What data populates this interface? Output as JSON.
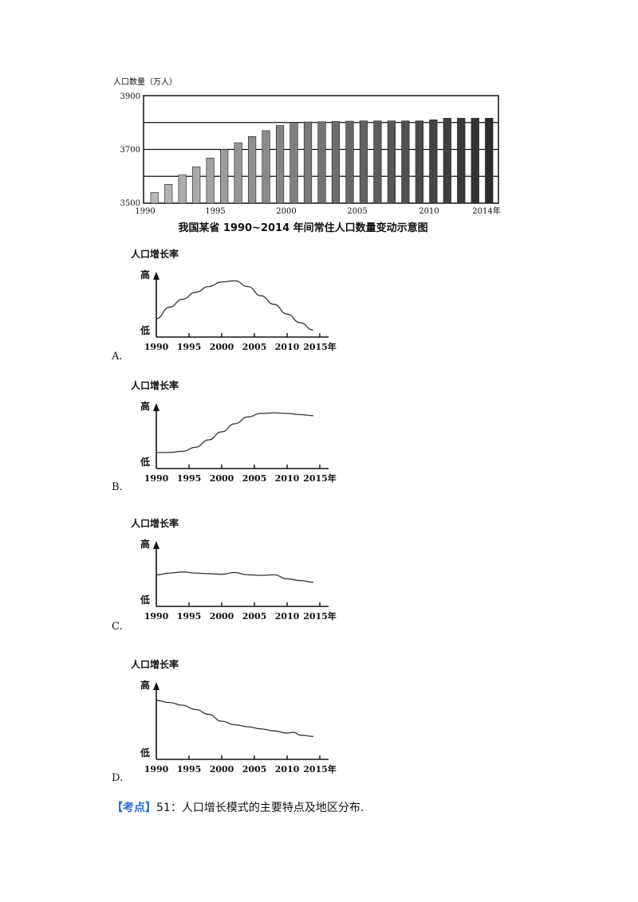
{
  "bar_chart": {
    "ylabel": "人口数量（万人）",
    "title": "我国某省 1990~2014 年间常住人口数量变动示意图",
    "y_ticks": [
      "3900",
      "3700",
      "3500"
    ],
    "x_ticks": [
      "1990",
      "1995",
      "2000",
      "2005",
      "2010",
      "2014年"
    ]
  },
  "options": [
    {
      "letter": "A.",
      "ylabel": "人口增长率",
      "high": "高",
      "low": "低",
      "x_ticks": [
        "1990",
        "1995",
        "2000",
        "2005",
        "2010",
        "2015年"
      ]
    },
    {
      "letter": "B.",
      "ylabel": "人口增长率",
      "high": "高",
      "low": "低",
      "x_ticks": [
        "1990",
        "1995",
        "2000",
        "2005",
        "2010",
        "2015年"
      ]
    },
    {
      "letter": "C.",
      "ylabel": "人口增长率",
      "high": "高",
      "low": "低",
      "x_ticks": [
        "1990",
        "1995",
        "2000",
        "2005",
        "2010",
        "2015年"
      ]
    },
    {
      "letter": "D.",
      "ylabel": "人口增长率",
      "high": "高",
      "low": "低",
      "x_ticks": [
        "1990",
        "1995",
        "2000",
        "2005",
        "2010",
        "2015年"
      ]
    }
  ],
  "kaodian": {
    "tag": "【考点】",
    "text": "51：人口增长模式的主要特点及地区分布."
  },
  "chart_data": [
    {
      "type": "bar",
      "title": "我国某省 1990~2014 年间常住人口数量变动示意图",
      "xlabel": "",
      "ylabel": "人口数量（万人）",
      "ylim": [
        3500,
        3900
      ],
      "categories": [
        "1990",
        "1991",
        "1992",
        "1993",
        "1994",
        "1995",
        "1996",
        "1997",
        "1998",
        "1999",
        "2000",
        "2001",
        "2002",
        "2003",
        "2004",
        "2005",
        "2006",
        "2007",
        "2008",
        "2009",
        "2010",
        "2011",
        "2012",
        "2013",
        "2014"
      ],
      "values": [
        3540,
        3570,
        3605,
        3635,
        3668,
        3700,
        3725,
        3748,
        3770,
        3789,
        3800,
        3802,
        3803,
        3804,
        3805,
        3806,
        3806,
        3806,
        3806,
        3806,
        3810,
        3816,
        3816,
        3816,
        3816
      ]
    },
    {
      "type": "line",
      "name": "A",
      "ylabel": "人口增长率",
      "xlabel": "",
      "x": [
        1990,
        1992,
        1994,
        1996,
        1998,
        2000,
        2002,
        2004,
        2006,
        2008,
        2010,
        2012,
        2014
      ],
      "y": [
        0.32,
        0.52,
        0.66,
        0.78,
        0.88,
        0.96,
        0.98,
        0.88,
        0.72,
        0.57,
        0.4,
        0.25,
        0.12
      ]
    },
    {
      "type": "line",
      "name": "B",
      "ylabel": "人口增长率",
      "xlabel": "",
      "x": [
        1990,
        1992,
        1994,
        1996,
        1998,
        2000,
        2002,
        2004,
        2006,
        2008,
        2010,
        2012,
        2014
      ],
      "y": [
        0.28,
        0.28,
        0.3,
        0.37,
        0.5,
        0.64,
        0.78,
        0.9,
        0.96,
        0.97,
        0.96,
        0.94,
        0.92
      ]
    },
    {
      "type": "line",
      "name": "C",
      "ylabel": "人口增长率",
      "xlabel": "",
      "x": [
        1990,
        1992,
        1994,
        1996,
        1998,
        2000,
        2002,
        2004,
        2006,
        2008,
        2010,
        2012,
        2014
      ],
      "y": [
        0.55,
        0.58,
        0.6,
        0.58,
        0.57,
        0.56,
        0.59,
        0.55,
        0.54,
        0.55,
        0.48,
        0.45,
        0.42
      ]
    },
    {
      "type": "line",
      "name": "D",
      "ylabel": "人口增长率",
      "xlabel": "",
      "x": [
        1990,
        1992,
        1994,
        1996,
        1998,
        2000,
        2002,
        2004,
        2006,
        2008,
        2010,
        2011,
        2012,
        2014
      ],
      "y": [
        0.85,
        0.82,
        0.78,
        0.72,
        0.65,
        0.55,
        0.5,
        0.47,
        0.44,
        0.41,
        0.38,
        0.39,
        0.35,
        0.33
      ]
    }
  ]
}
